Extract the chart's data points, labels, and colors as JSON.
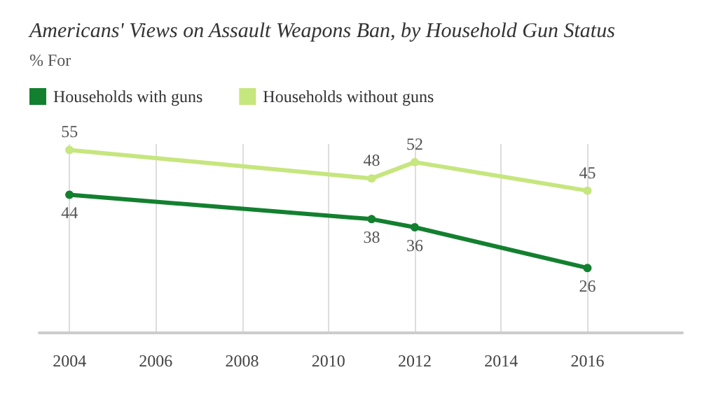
{
  "chart_data": {
    "type": "line",
    "title": "Americans' Views on Assault Weapons Ban, by Household Gun Status",
    "subtitle": "% For",
    "x": [
      2004,
      2011,
      2012,
      2016
    ],
    "series": [
      {
        "name": "Households with guns",
        "color": "#13802f",
        "values": [
          44,
          38,
          36,
          26
        ]
      },
      {
        "name": "Households without guns",
        "color": "#c6e67e",
        "values": [
          55,
          48,
          52,
          45
        ]
      }
    ],
    "xlim": [
      2003.3,
      2018.2
    ],
    "xticks": [
      2004,
      2006,
      2008,
      2010,
      2012,
      2014,
      2016
    ],
    "grid": "x",
    "legend": "top left",
    "marker": "circle",
    "line_style": "solid",
    "data_labels": true
  }
}
